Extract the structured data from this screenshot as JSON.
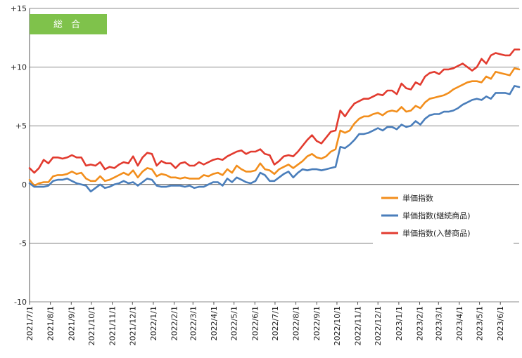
{
  "chart_data": {
    "type": "line",
    "badge": "総合",
    "ylim": [
      -10,
      15
    ],
    "y_ticks": [
      {
        "value": 15,
        "label": "+15"
      },
      {
        "value": 10,
        "label": "+10"
      },
      {
        "value": 5,
        "label": "+5"
      },
      {
        "value": 0,
        "label": "0"
      },
      {
        "value": -5,
        "label": "-5"
      },
      {
        "value": -10,
        "label": "-10"
      }
    ],
    "x_tick_labels": [
      "2021/7/1",
      "2021/8/1",
      "2021/9/1",
      "2021/10/1",
      "2021/11/1",
      "2021/12/1",
      "2022/1/1",
      "2022/2/1",
      "2022/3/1",
      "2022/4/1",
      "2022/5/1",
      "2022/6/1",
      "2022/7/1",
      "2022/8/1",
      "2022/9/1",
      "2022/10/1",
      "2022/11/1",
      "2022/12/1",
      "2023/1/1",
      "2023/2/1",
      "2023/3/1",
      "2023/4/1",
      "2023/5/1",
      "2023/6/1"
    ],
    "x_tick_index": [
      0,
      4.43,
      8.86,
      13.14,
      17.57,
      21.86,
      26.29,
      30.71,
      34.71,
      39.14,
      43.43,
      47.86,
      52.14,
      56.57,
      61,
      65.29,
      69.71,
      74,
      78.43,
      82.86,
      86.86,
      91.29,
      95.57,
      100
    ],
    "grid": {
      "horizontal": true,
      "vertical": false
    },
    "legend_position": "middle-right",
    "series": [
      {
        "name": "単価指数",
        "color": "#f28e1c",
        "values": [
          0.4,
          -0.1,
          0.1,
          0.2,
          0.2,
          0.7,
          0.8,
          0.8,
          0.9,
          1.1,
          0.9,
          1.0,
          0.5,
          0.3,
          0.3,
          0.7,
          0.3,
          0.4,
          0.6,
          0.8,
          1.0,
          0.8,
          1.2,
          0.6,
          1.1,
          1.4,
          1.3,
          0.7,
          0.9,
          0.8,
          0.6,
          0.6,
          0.5,
          0.6,
          0.5,
          0.5,
          0.5,
          0.8,
          0.7,
          0.9,
          1.0,
          0.8,
          1.3,
          1.0,
          1.6,
          1.3,
          1.1,
          1.1,
          1.2,
          1.8,
          1.3,
          1.2,
          0.9,
          1.3,
          1.5,
          1.7,
          1.4,
          1.7,
          2.0,
          2.4,
          2.6,
          2.3,
          2.2,
          2.4,
          2.8,
          3.0,
          4.6,
          4.4,
          4.6,
          5.2,
          5.6,
          5.8,
          5.8,
          6.0,
          6.1,
          5.9,
          6.2,
          6.3,
          6.2,
          6.6,
          6.2,
          6.3,
          6.7,
          6.5,
          7.0,
          7.3,
          7.4,
          7.5,
          7.6,
          7.8,
          8.1,
          8.3,
          8.5,
          8.7,
          8.8,
          8.8,
          8.7,
          9.2,
          9.0,
          9.6,
          9.5,
          9.4,
          9.3,
          9.9,
          9.8
        ]
      },
      {
        "name": "単価指数(継続商品)",
        "color": "#4a7ebb",
        "values": [
          0.1,
          -0.2,
          -0.2,
          -0.2,
          -0.1,
          0.3,
          0.4,
          0.4,
          0.5,
          0.3,
          0.1,
          0.0,
          -0.1,
          -0.6,
          -0.3,
          0.0,
          -0.3,
          -0.2,
          0.0,
          0.1,
          0.3,
          0.1,
          0.2,
          -0.1,
          0.2,
          0.5,
          0.4,
          -0.1,
          -0.2,
          -0.2,
          -0.1,
          -0.1,
          -0.1,
          -0.2,
          -0.1,
          -0.3,
          -0.2,
          -0.2,
          0.0,
          0.2,
          0.2,
          -0.1,
          0.5,
          0.2,
          0.6,
          0.4,
          0.2,
          0.1,
          0.3,
          1.0,
          0.8,
          0.3,
          0.3,
          0.6,
          0.9,
          1.1,
          0.6,
          1.0,
          1.3,
          1.2,
          1.3,
          1.3,
          1.2,
          1.3,
          1.4,
          1.5,
          3.2,
          3.1,
          3.4,
          3.8,
          4.3,
          4.3,
          4.4,
          4.6,
          4.8,
          4.6,
          4.9,
          4.9,
          4.7,
          5.1,
          4.9,
          5.0,
          5.4,
          5.1,
          5.6,
          5.9,
          6.0,
          6.0,
          6.2,
          6.2,
          6.3,
          6.5,
          6.8,
          7.0,
          7.2,
          7.3,
          7.2,
          7.5,
          7.3,
          7.8,
          7.8,
          7.8,
          7.7,
          8.4,
          8.3
        ]
      },
      {
        "name": "単価指数(入替商品)",
        "color": "#e23b2f",
        "values": [
          1.4,
          1.0,
          1.4,
          2.1,
          1.8,
          2.3,
          2.3,
          2.2,
          2.3,
          2.5,
          2.3,
          2.3,
          1.6,
          1.7,
          1.6,
          1.9,
          1.3,
          1.5,
          1.4,
          1.7,
          1.9,
          1.8,
          2.4,
          1.6,
          2.3,
          2.7,
          2.6,
          1.6,
          2.0,
          1.8,
          1.8,
          1.4,
          1.8,
          1.9,
          1.6,
          1.6,
          1.9,
          1.7,
          1.9,
          2.1,
          2.2,
          2.1,
          2.4,
          2.6,
          2.8,
          2.9,
          2.6,
          2.8,
          2.8,
          3.0,
          2.6,
          2.5,
          1.7,
          2.0,
          2.4,
          2.5,
          2.4,
          2.8,
          3.3,
          3.8,
          4.2,
          3.7,
          3.5,
          4.0,
          4.5,
          4.6,
          6.3,
          5.8,
          6.4,
          6.9,
          7.1,
          7.3,
          7.3,
          7.5,
          7.7,
          7.6,
          8.0,
          8.0,
          7.7,
          8.6,
          8.2,
          8.1,
          8.7,
          8.5,
          9.2,
          9.5,
          9.6,
          9.4,
          9.8,
          9.8,
          9.9,
          10.1,
          10.3,
          10.0,
          9.7,
          10.0,
          10.7,
          10.3,
          11.0,
          11.2,
          11.1,
          11.0,
          11.0,
          11.5,
          11.5
        ]
      }
    ]
  }
}
